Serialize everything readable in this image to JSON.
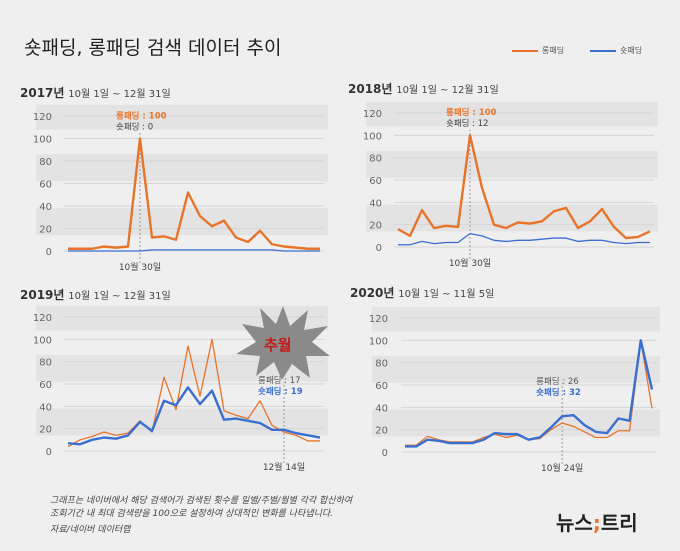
{
  "title": "숏패딩, 롱패딩 검색 데이터 추이",
  "legend": {
    "long": "롱패딩",
    "short": "숏패딩"
  },
  "colors": {
    "long": "#e8742b",
    "short": "#3a6fd0"
  },
  "badge": "추월",
  "notes": [
    "그래프는 네이버에서 해당 검색어가 검색된 횟수를 일별/주별/월별 각각 합산하여",
    "조회기간 내 최대 검색량을 100으로 설정하여 상대적인 변화를 나타냅니다.",
    "자료/네이버 데이터랩"
  ],
  "logo": {
    "left": "뉴스",
    "sep": ";",
    "right": "트리"
  },
  "chart_data": [
    {
      "type": "line",
      "year": "2017년",
      "range": "10월 1일 ~ 12월 31일",
      "ylim": [
        0,
        120
      ],
      "yticks": [
        0,
        20,
        40,
        60,
        80,
        100,
        120
      ],
      "series": [
        {
          "name": "롱패딩",
          "values": [
            2,
            2,
            2,
            4,
            3,
            4,
            100,
            12,
            13,
            10,
            52,
            31,
            22,
            27,
            12,
            8,
            18,
            6,
            4,
            3,
            2,
            2
          ]
        },
        {
          "name": "숏패딩",
          "values": [
            0,
            0,
            0,
            0,
            0,
            0,
            0,
            1,
            1,
            1,
            1,
            1,
            1,
            1,
            1,
            1,
            1,
            1,
            0,
            0,
            0,
            0
          ]
        }
      ],
      "marker": {
        "index": 6,
        "label": "10월 30일",
        "long_text": "롱패딩 : 100",
        "short_text": "숏패딩 : 0",
        "highlight": "long"
      }
    },
    {
      "type": "line",
      "year": "2018년",
      "range": "10월 1일 ~ 12월 31일",
      "ylim": [
        0,
        120
      ],
      "yticks": [
        0,
        20,
        40,
        60,
        80,
        100,
        120
      ],
      "series": [
        {
          "name": "롱패딩",
          "values": [
            16,
            10,
            33,
            17,
            19,
            18,
            100,
            53,
            20,
            17,
            22,
            21,
            23,
            32,
            35,
            17,
            23,
            34,
            18,
            8,
            9,
            14
          ]
        },
        {
          "name": "숏패딩",
          "values": [
            2,
            2,
            5,
            3,
            4,
            4,
            12,
            10,
            6,
            5,
            6,
            6,
            7,
            8,
            8,
            5,
            6,
            6,
            4,
            3,
            4,
            4
          ]
        }
      ],
      "marker": {
        "index": 6,
        "label": "10월 30일",
        "long_text": "롱패딩 : 100",
        "short_text": "숏패딩 : 12",
        "highlight": "long"
      }
    },
    {
      "type": "line",
      "year": "2019년",
      "range": "10월 1일 ~ 12월 31일",
      "ylim": [
        0,
        120
      ],
      "yticks": [
        0,
        20,
        40,
        60,
        80,
        100,
        120
      ],
      "series": [
        {
          "name": "롱패딩",
          "values": [
            4,
            10,
            13,
            17,
            14,
            16,
            27,
            17,
            66,
            37,
            94,
            49,
            100,
            36,
            32,
            29,
            45,
            23,
            17,
            14,
            9,
            9
          ]
        },
        {
          "name": "숏패딩",
          "values": [
            7,
            6,
            10,
            12,
            11,
            14,
            26,
            18,
            45,
            41,
            57,
            42,
            54,
            28,
            29,
            27,
            25,
            19,
            19,
            16,
            14,
            12
          ]
        }
      ],
      "marker": {
        "index": 18,
        "label": "12월 14일",
        "long_text": "롱패딩 : 17",
        "short_text": "숏패딩 : 19",
        "highlight": "short"
      }
    },
    {
      "type": "line",
      "year": "2020년",
      "range": "10월 1일 ~ 11월 5일",
      "ylim": [
        0,
        120
      ],
      "yticks": [
        0,
        20,
        40,
        60,
        80,
        100,
        120
      ],
      "series": [
        {
          "name": "롱패딩",
          "values": [
            6,
            6,
            14,
            11,
            9,
            9,
            9,
            13,
            16,
            13,
            15,
            11,
            12,
            20,
            26,
            23,
            18,
            13,
            13,
            19,
            19,
            100,
            39
          ]
        },
        {
          "name": "숏패딩",
          "values": [
            5,
            5,
            11,
            10,
            8,
            8,
            8,
            11,
            17,
            16,
            16,
            11,
            13,
            22,
            32,
            33,
            24,
            18,
            17,
            30,
            28,
            100,
            56
          ]
        }
      ],
      "marker": {
        "index": 14,
        "label": "10월 24일",
        "long_text": "롱패딩 : 26",
        "short_text": "숏패딩 : 32",
        "highlight": "short"
      }
    }
  ]
}
